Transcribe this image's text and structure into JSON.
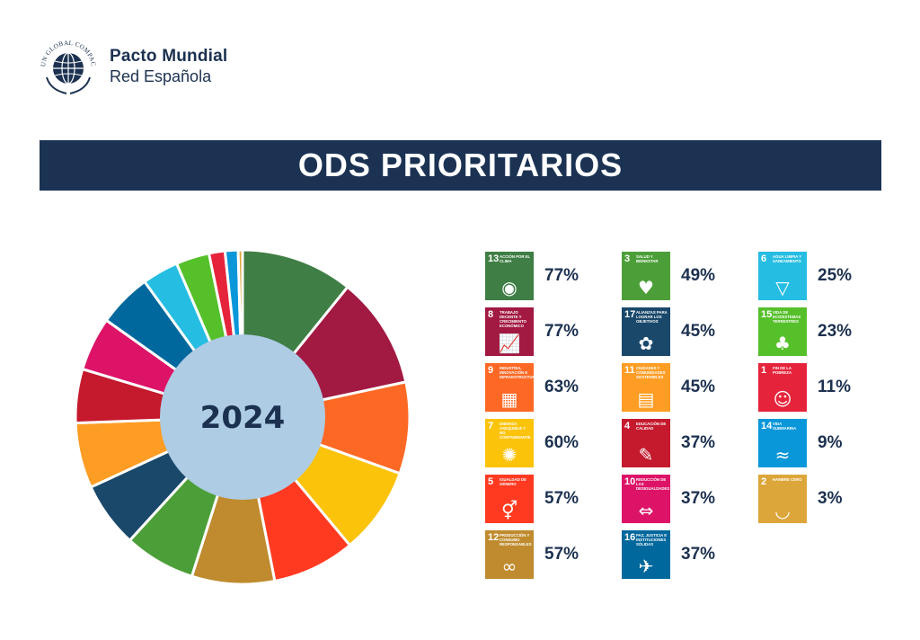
{
  "logo": {
    "ring_text": "UN GLOBAL COMPACT",
    "line1": "Pacto Mundial",
    "line2": "Red Española"
  },
  "title": "ODS PRIORITARIOS",
  "chart_data": {
    "type": "pie",
    "center_label": "2024",
    "series": [
      {
        "values": [
          77,
          77,
          63,
          60,
          57,
          57,
          49,
          45,
          45,
          37,
          37,
          37,
          25,
          23,
          11,
          9,
          3
        ]
      }
    ]
  },
  "sdgs": [
    {
      "num": "13",
      "name": "Acción por el clima",
      "pct": "77%",
      "color": "#3f7e44",
      "icon": "eye-globe"
    },
    {
      "num": "8",
      "name": "Trabajo decente y crecimiento económico",
      "pct": "77%",
      "color": "#a21942",
      "icon": "growth-chart"
    },
    {
      "num": "9",
      "name": "Industria, innovación e infraestructura",
      "pct": "63%",
      "color": "#fd6925",
      "icon": "cubes"
    },
    {
      "num": "7",
      "name": "Energía asequible y no contaminante",
      "pct": "60%",
      "color": "#fcc30b",
      "icon": "sun-power"
    },
    {
      "num": "5",
      "name": "Igualdad de género",
      "pct": "57%",
      "color": "#ff3a21",
      "icon": "gender-equality"
    },
    {
      "num": "12",
      "name": "Producción y consumo responsables",
      "pct": "57%",
      "color": "#bf8b2e",
      "icon": "infinity"
    },
    {
      "num": "3",
      "name": "Salud y bienestar",
      "pct": "49%",
      "color": "#4c9f38",
      "icon": "heartbeat"
    },
    {
      "num": "17",
      "name": "Alianzas para lograr los objetivos",
      "pct": "45%",
      "color": "#19486a",
      "icon": "flower-rings"
    },
    {
      "num": "11",
      "name": "Ciudades y comunidades sostenibles",
      "pct": "45%",
      "color": "#fd9d24",
      "icon": "buildings"
    },
    {
      "num": "4",
      "name": "Educación de calidad",
      "pct": "37%",
      "color": "#c5192d",
      "icon": "book-pencil"
    },
    {
      "num": "10",
      "name": "Reducción de las desigualdades",
      "pct": "37%",
      "color": "#dd1367",
      "icon": "equal-arrows"
    },
    {
      "num": "16",
      "name": "Paz, justicia e instituciones sólidas",
      "pct": "37%",
      "color": "#00689d",
      "icon": "dove"
    },
    {
      "num": "6",
      "name": "Agua limpia y saneamiento",
      "pct": "25%",
      "color": "#26bde2",
      "icon": "water-glass"
    },
    {
      "num": "15",
      "name": "Vida de ecosistemas terrestres",
      "pct": "23%",
      "color": "#56c02b",
      "icon": "tree"
    },
    {
      "num": "1",
      "name": "Fin de la pobreza",
      "pct": "11%",
      "color": "#e5243b",
      "icon": "family"
    },
    {
      "num": "14",
      "name": "Vida submarina",
      "pct": "9%",
      "color": "#0a97d9",
      "icon": "fish"
    },
    {
      "num": "2",
      "name": "Hambre cero",
      "pct": "3%",
      "color": "#dda63a",
      "icon": "bowl"
    }
  ]
}
